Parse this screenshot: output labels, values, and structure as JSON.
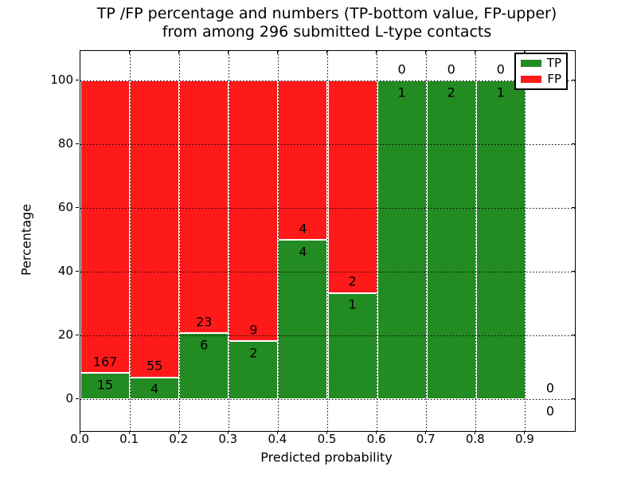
{
  "chart_data": {
    "type": "bar",
    "stacked": true,
    "title_line1": "TP /FP percentage and numbers (TP-bottom value, FP-upper)",
    "title_line2": "from among 296 submitted L-type contacts",
    "xlabel": "Predicted probability",
    "ylabel": "Percentage",
    "total_contacts": 296,
    "bin_width": 0.1,
    "xlim": [
      0.0,
      1.0
    ],
    "ylim": [
      -10,
      109.25
    ],
    "grid": "dotted",
    "xtick_labels": [
      "0.0",
      "0.1",
      "0.2",
      "0.3",
      "0.4",
      "0.5",
      "0.6",
      "0.7",
      "0.8",
      "0.9"
    ],
    "ytick_values": [
      0,
      20,
      40,
      60,
      80,
      100
    ],
    "bins": [
      [
        0.0,
        0.1
      ],
      [
        0.1,
        0.2
      ],
      [
        0.2,
        0.3
      ],
      [
        0.3,
        0.4
      ],
      [
        0.4,
        0.5
      ],
      [
        0.5,
        0.6
      ],
      [
        0.6,
        0.7
      ],
      [
        0.7,
        0.8
      ],
      [
        0.8,
        0.9
      ],
      [
        0.9,
        1.0
      ]
    ],
    "series": [
      {
        "name": "TP",
        "color": "#228B22",
        "counts": [
          15,
          4,
          6,
          2,
          4,
          1,
          1,
          2,
          1,
          0
        ]
      },
      {
        "name": "FP",
        "color": "#FF1A1A",
        "counts": [
          167,
          55,
          23,
          9,
          4,
          2,
          0,
          0,
          0,
          0
        ]
      }
    ],
    "bar_unit": "percent of bin total (TP+FP stacked to 100%)",
    "legend": {
      "position": "upper right",
      "entries": [
        "TP",
        "FP"
      ]
    }
  }
}
